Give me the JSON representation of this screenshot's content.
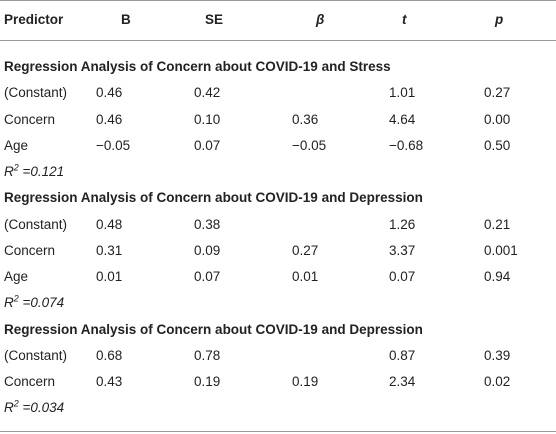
{
  "header": [
    "Predictor",
    "B",
    "SE",
    "β",
    "t",
    "p"
  ],
  "sections": [
    {
      "title": "Regression Analysis of Concern about COVID-19 and Stress",
      "rows": [
        [
          "(Constant)",
          "0.46",
          "0.42",
          "",
          "1.01",
          "0.27"
        ],
        [
          "Concern",
          "0.46",
          "0.10",
          "0.36",
          "4.64",
          "0.00"
        ],
        [
          "Age",
          "−0.05",
          "0.07",
          "−0.05",
          "−0.68",
          "0.50"
        ]
      ],
      "r2_label": "R",
      "r2_sup": "2",
      "r2_value": " =0.121"
    },
    {
      "title": "Regression Analysis of Concern about COVID-19 and Depression",
      "rows": [
        [
          "(Constant)",
          "0.48",
          "0.38",
          "",
          "1.26",
          "0.21"
        ],
        [
          "Concern",
          "0.31",
          "0.09",
          "0.27",
          "3.37",
          "0.001"
        ],
        [
          "Age",
          "0.01",
          "0.07",
          "0.01",
          "0.07",
          "0.94"
        ]
      ],
      "r2_label": "R",
      "r2_sup": "2",
      "r2_value": " =0.074"
    },
    {
      "title": "Regression Analysis of Concern about COVID-19 and Depression",
      "rows": [
        [
          "(Constant)",
          "0.68",
          "0.78",
          "",
          "0.87",
          "0.39"
        ],
        [
          "Concern",
          "0.43",
          "0.19",
          "0.19",
          "2.34",
          "0.02"
        ]
      ],
      "r2_label": "R",
      "r2_sup": "2",
      "r2_value": " =0.034"
    }
  ]
}
